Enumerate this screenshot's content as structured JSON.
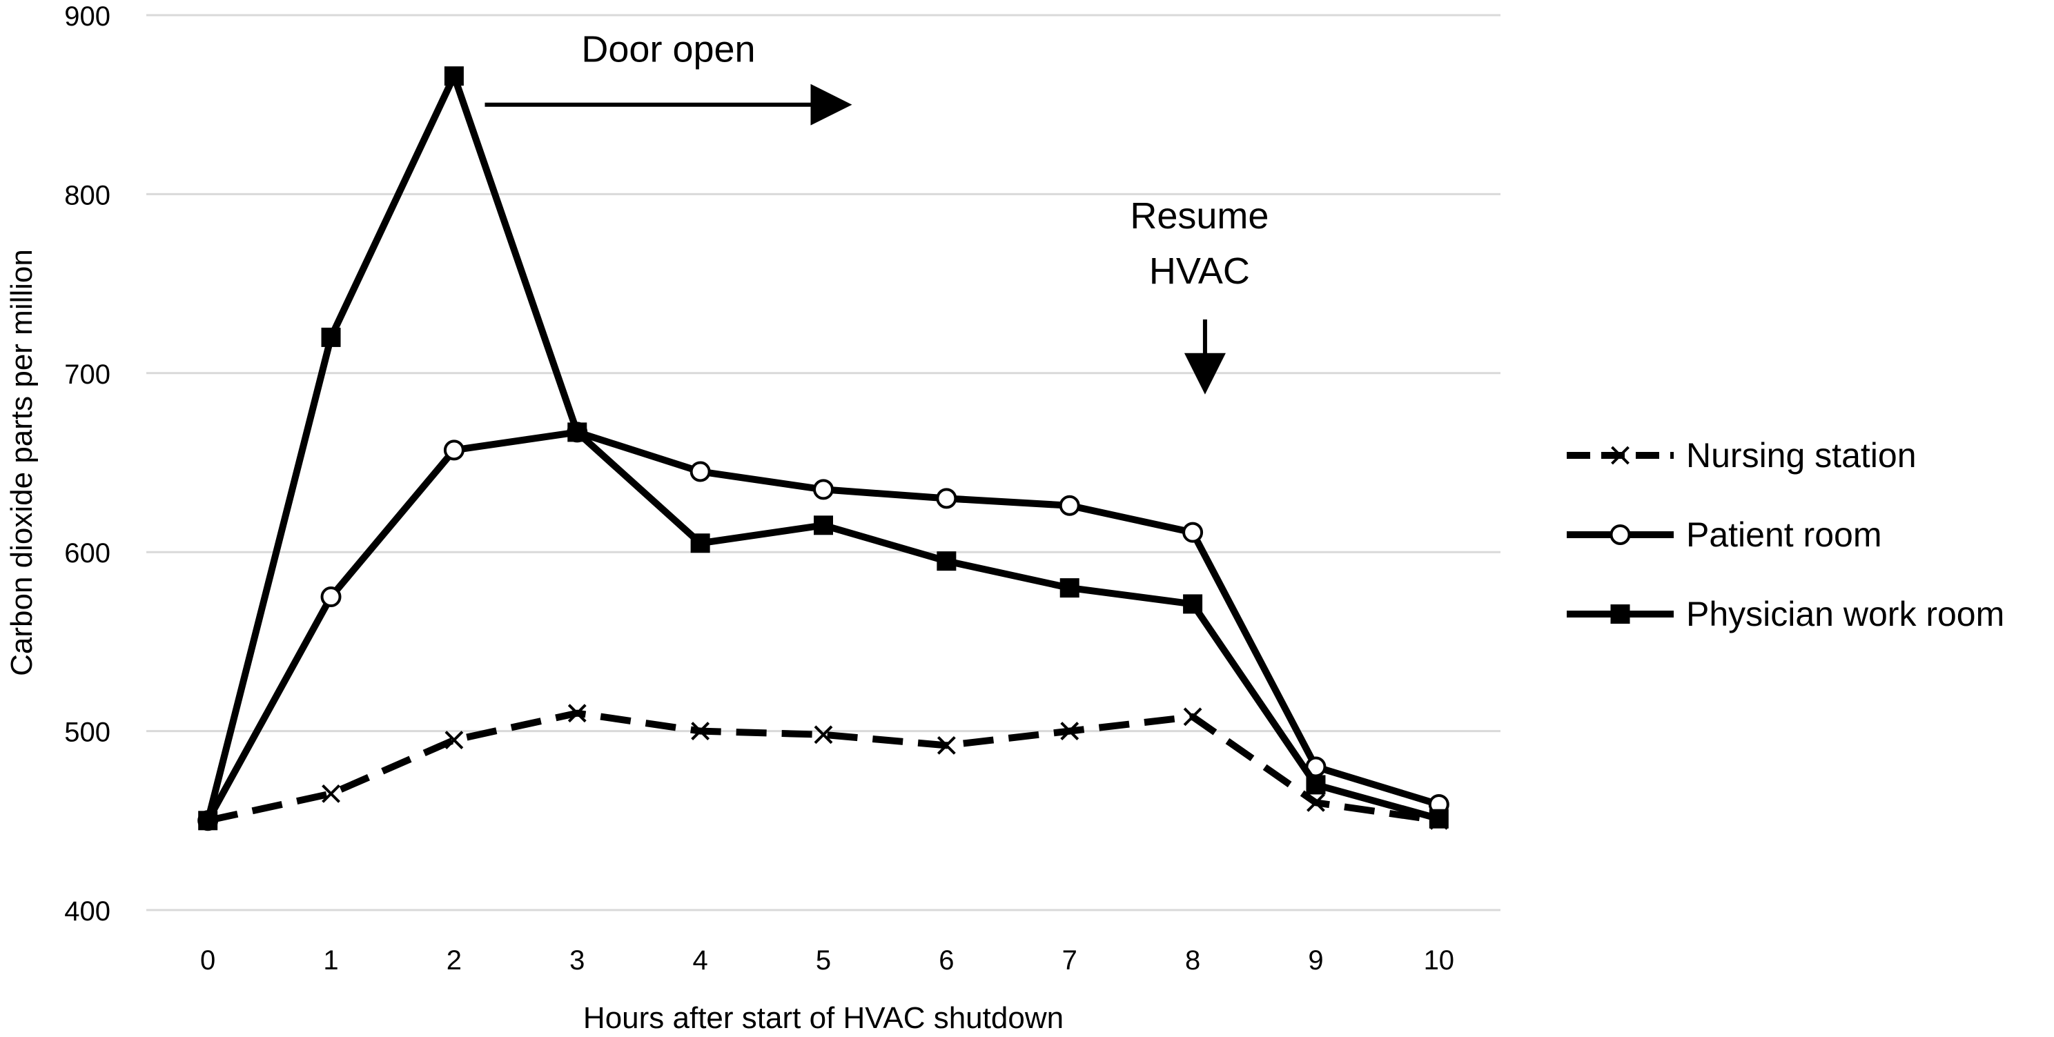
{
  "chart_data": {
    "type": "line",
    "title": "",
    "xlabel": "Hours after start of HVAC shutdown",
    "ylabel": "Carbon dioxide parts per million",
    "x": [
      0,
      1,
      2,
      3,
      4,
      5,
      6,
      7,
      8,
      9,
      10
    ],
    "xticks": [
      "0",
      "1",
      "2",
      "3",
      "4",
      "5",
      "6",
      "7",
      "8",
      "9",
      "10"
    ],
    "ylim": [
      400,
      900
    ],
    "yticks": [
      "400",
      "500",
      "600",
      "700",
      "800",
      "900"
    ],
    "grid": "horizontal",
    "legend_position": "right",
    "series": [
      {
        "name": "Nursing station",
        "marker": "x",
        "line_style": "dashed",
        "color": "#000000",
        "values": [
          450,
          465,
          495,
          510,
          500,
          498,
          492,
          500,
          508,
          460,
          450
        ]
      },
      {
        "name": "Patient room",
        "marker": "circle-open",
        "line_style": "solid",
        "color": "#000000",
        "values": [
          450,
          575,
          657,
          667,
          645,
          635,
          630,
          626,
          611,
          480,
          459
        ]
      },
      {
        "name": "Physician work room",
        "marker": "square-filled",
        "line_style": "solid",
        "color": "#000000",
        "values": [
          450,
          720,
          866,
          667,
          605,
          615,
          595,
          580,
          571,
          470,
          451
        ]
      }
    ],
    "annotations": [
      {
        "text": "Door open",
        "arrow_direction": "right",
        "x_from": 2.25,
        "x_to": 5.3,
        "y": 850
      },
      {
        "text_lines": [
          "Resume",
          "HVAC"
        ],
        "arrow_direction": "down",
        "x": 8.1,
        "y_from": 730,
        "y_to": 685
      }
    ],
    "colors": {
      "gridline": "#d9d9d9",
      "ink": "#000000",
      "background": "#ffffff"
    }
  }
}
